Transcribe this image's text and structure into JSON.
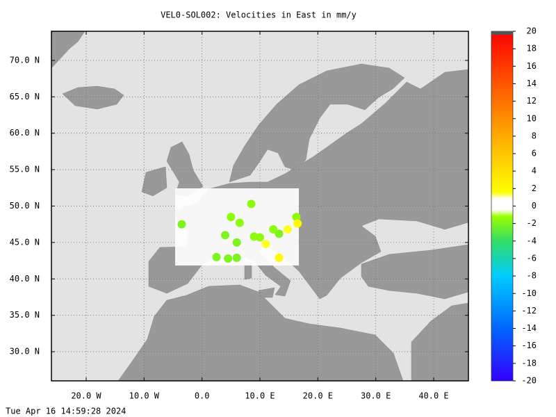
{
  "chart_data": {
    "type": "map",
    "title": "VEL0-SOL002: Velocities in East in mm/y",
    "footer": "Tue Apr 16 14:59:28 2024",
    "xlim": [
      -26,
      46
    ],
    "ylim": [
      26,
      74
    ],
    "xticks": [
      {
        "value": -20,
        "label": "20.0 W"
      },
      {
        "value": -10,
        "label": "10.0 W"
      },
      {
        "value": 0,
        "label": "0.0"
      },
      {
        "value": 10,
        "label": "10.0 E"
      },
      {
        "value": 20,
        "label": "20.0 E"
      },
      {
        "value": 30,
        "label": "30.0 E"
      },
      {
        "value": 40,
        "label": "40.0 E"
      }
    ],
    "yticks": [
      {
        "value": 70,
        "label": "70.0 N"
      },
      {
        "value": 65,
        "label": "65.0 N"
      },
      {
        "value": 60,
        "label": "60.0 N"
      },
      {
        "value": 55,
        "label": "55.0 N"
      },
      {
        "value": 50,
        "label": "50.0 N"
      },
      {
        "value": 45,
        "label": "45.0 N"
      },
      {
        "value": 40,
        "label": "40.0 N"
      },
      {
        "value": 35,
        "label": "35.0 N"
      },
      {
        "value": 30,
        "label": "30.0 N"
      }
    ],
    "grid": true,
    "colorbar": {
      "lim": [
        -20,
        20
      ],
      "ticks": [
        20,
        18,
        16,
        14,
        12,
        10,
        8,
        6,
        4,
        2,
        0,
        -2,
        -4,
        -6,
        -8,
        -10,
        -12,
        -14,
        -16,
        -18,
        -20
      ]
    },
    "points": {
      "x": [
        -3.5,
        2.5,
        4.5,
        6,
        8.5,
        5,
        6.5,
        4,
        6,
        9,
        10,
        11,
        13.3,
        14.8,
        16.3,
        16.5,
        12.3,
        13.3
      ],
      "y": [
        47.5,
        43,
        42.8,
        42.9,
        50.3,
        48.5,
        47.7,
        46,
        45,
        45.8,
        45.7,
        44.8,
        42.9,
        46.8,
        48.5,
        47.6,
        46.8,
        46.2
      ],
      "values": [
        -2,
        -2,
        -2,
        -2,
        -1.5,
        -1.5,
        -1.5,
        -2,
        -2,
        -1.5,
        -1.5,
        1.5,
        2,
        1.5,
        -1.5,
        2,
        -1.5,
        -2
      ]
    }
  }
}
